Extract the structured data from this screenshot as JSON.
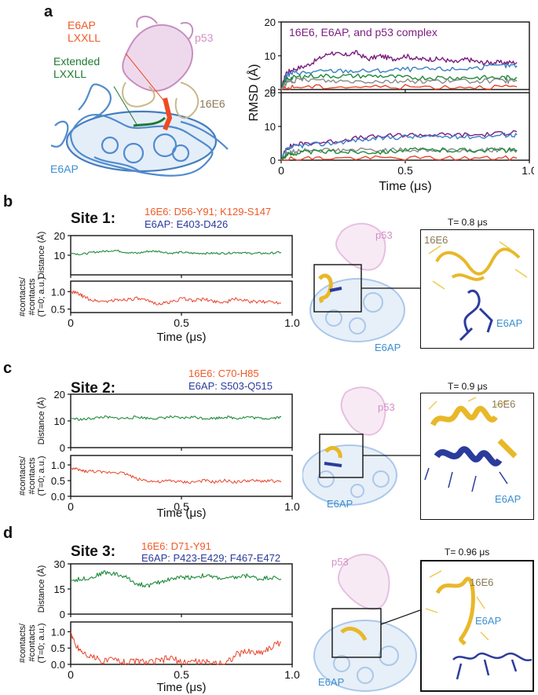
{
  "colors": {
    "purple": "#7b1d7f",
    "blue": "#3b7fc4",
    "green": "#1f8a3b",
    "grey": "#8a8a8a",
    "red": "#e8452c",
    "orange_red": "#f05a28",
    "navy": "#2b3b9c",
    "tan": "#8a7a55",
    "pink": "#d58ec7",
    "e6ap_blue": "#3c8fcf",
    "dark_green": "#1e7a32"
  },
  "panel_a": {
    "letter": "a",
    "labels": {
      "e6ap_lxxll_1": "E6AP",
      "e6ap_lxxll_2": "LXXLL",
      "extended_1": "Extended",
      "extended_2": "LXXLL",
      "p53": "p53",
      "e16": "16E6",
      "e6ap": "E6AP"
    }
  },
  "panel_b": {
    "letter": "b",
    "site_title": "Site 1:",
    "region_16e6": "16E6: D56-Y91; K129-S147",
    "region_e6ap": "E6AP: E403-D426",
    "zoom_time": "T= 0.8 μs",
    "struct_labels": {
      "p53": "p53",
      "e6ap": "E6AP",
      "zoom_16e6": "16E6",
      "zoom_e6ap": "E6AP"
    }
  },
  "panel_c": {
    "letter": "c",
    "site_title": "Site 2:",
    "region_16e6": "16E6: C70-H85",
    "region_e6ap": "E6AP: S503-Q515",
    "zoom_time": "T= 0.9 μs",
    "struct_labels": {
      "p53": "p53",
      "e6ap": "E6AP",
      "zoom_16e6": "16E6",
      "zoom_e6ap": "E6AP"
    }
  },
  "panel_d": {
    "letter": "d",
    "site_title": "Site 3:",
    "region_16e6": "16E6: D71-Y91",
    "region_e6ap": "E6AP: P423-E429; F467-E472",
    "zoom_time": "T= 0.96 μs",
    "struct_labels": {
      "p53": "p53",
      "e6ap": "E6AP",
      "zoom_16e6": "16E6",
      "zoom_e6ap": "E6AP"
    }
  },
  "chart_data": [
    {
      "id": "rmsd",
      "type": "line",
      "title": "16E6, E6AP, and p53 complex",
      "xlabel": "Time (μs)",
      "ylabel": "RMSD (Å)",
      "xlim": [
        0,
        1.0
      ],
      "xticks": [
        "0",
        "0.5",
        "1.0"
      ],
      "subplots": [
        {
          "ylim": [
            0,
            20
          ],
          "yticks": [
            "0",
            "10",
            "20"
          ],
          "series": [
            {
              "color": "#7b1d7f",
              "x": [
                0,
                0.02,
                0.05,
                0.1,
                0.15,
                0.2,
                0.25,
                0.3,
                0.35,
                0.4,
                0.45,
                0.5,
                0.55,
                0.6,
                0.65,
                0.7,
                0.75,
                0.8,
                0.85,
                0.9,
                0.95
              ],
              "y": [
                0,
                5,
                6,
                7,
                9,
                11,
                10,
                11,
                9,
                10,
                9,
                10,
                9,
                9,
                9,
                8,
                9,
                8,
                8,
                8,
                8
              ]
            },
            {
              "color": "#3b7fc4",
              "x": [
                0,
                0.02,
                0.05,
                0.1,
                0.2,
                0.3,
                0.4,
                0.5,
                0.6,
                0.7,
                0.8,
                0.9,
                0.95
              ],
              "y": [
                0,
                4,
                5,
                5,
                5.5,
                5.5,
                5.5,
                6,
                6,
                6,
                6.5,
                7,
                7
              ]
            },
            {
              "color": "#1f8a3b",
              "x": [
                0,
                0.02,
                0.05,
                0.1,
                0.2,
                0.3,
                0.4,
                0.5,
                0.6,
                0.7,
                0.8,
                0.9,
                0.95
              ],
              "y": [
                0,
                3,
                3.5,
                4,
                4,
                4,
                4,
                3.5,
                3.5,
                3.5,
                3.5,
                3.5,
                3.5
              ]
            },
            {
              "color": "#8a8a8a",
              "x": [
                0,
                0.02,
                0.05,
                0.1,
                0.2,
                0.3,
                0.4,
                0.5,
                0.6,
                0.7,
                0.8,
                0.9,
                0.95
              ],
              "y": [
                0,
                2,
                2.5,
                3,
                2.5,
                2.5,
                2.5,
                2.5,
                2.5,
                2.5,
                2.5,
                2.5,
                2.5
              ]
            },
            {
              "color": "#e8452c",
              "x": [
                0,
                0.05,
                0.2,
                0.4,
                0.6,
                0.8,
                0.95
              ],
              "y": [
                0,
                0.8,
                0.8,
                0.8,
                0.8,
                0.8,
                0.8
              ]
            }
          ]
        },
        {
          "ylim": [
            0,
            20
          ],
          "yticks": [
            "0",
            "10",
            "20"
          ],
          "series": [
            {
              "color": "#7b1d7f",
              "x": [
                0,
                0.02,
                0.05,
                0.1,
                0.2,
                0.3,
                0.4,
                0.5,
                0.6,
                0.7,
                0.8,
                0.9,
                0.95
              ],
              "y": [
                0,
                3.5,
                4.5,
                5,
                5.5,
                6.5,
                7,
                7.5,
                7.5,
                7.5,
                7.5,
                8,
                8.5
              ]
            },
            {
              "color": "#3b7fc4",
              "x": [
                0,
                0.02,
                0.05,
                0.1,
                0.2,
                0.3,
                0.4,
                0.5,
                0.6,
                0.7,
                0.8,
                0.9,
                0.95
              ],
              "y": [
                0,
                3,
                4,
                4.5,
                5,
                6,
                6.5,
                7,
                7,
                7,
                7,
                7.5,
                7.5
              ]
            },
            {
              "color": "#8a8a8a",
              "x": [
                0,
                0.02,
                0.05,
                0.1,
                0.2,
                0.3,
                0.4,
                0.5,
                0.6,
                0.7,
                0.8,
                0.9,
                0.95
              ],
              "y": [
                0,
                2,
                2.5,
                3,
                3,
                3,
                3,
                3,
                3,
                3,
                3,
                3,
                3
              ]
            },
            {
              "color": "#1f8a3b",
              "x": [
                0,
                0.02,
                0.05,
                0.1,
                0.2,
                0.3,
                0.4,
                0.5,
                0.6,
                0.7,
                0.8,
                0.9,
                0.95
              ],
              "y": [
                0,
                1.5,
                2,
                2.5,
                2.5,
                2.5,
                2.5,
                3,
                3,
                3,
                3,
                3,
                3
              ]
            },
            {
              "color": "#e8452c",
              "x": [
                0,
                0.05,
                0.2,
                0.4,
                0.6,
                0.8,
                0.95
              ],
              "y": [
                0,
                0.6,
                0.6,
                0.6,
                0.6,
                0.6,
                0.6
              ]
            }
          ]
        }
      ]
    },
    {
      "id": "site1",
      "type": "line",
      "xlabel": "Time (μs)",
      "xlim": [
        0,
        1.0
      ],
      "xticks": [
        "0",
        "0.5",
        "1.0"
      ],
      "distance": {
        "ylabel": "Distance (Å)",
        "ylim": [
          0,
          20
        ],
        "yticks": [
          "10",
          "20"
        ],
        "color": "#1f8a3b",
        "x": [
          0,
          0.05,
          0.1,
          0.15,
          0.2,
          0.25,
          0.3,
          0.35,
          0.4,
          0.45,
          0.5,
          0.55,
          0.6,
          0.65,
          0.7,
          0.75,
          0.8,
          0.85,
          0.9,
          0.95
        ],
        "y": [
          11,
          10.5,
          11.5,
          12,
          12.5,
          11.5,
          11,
          12,
          12,
          11,
          11.5,
          11,
          11,
          11,
          11,
          11.5,
          11,
          11,
          11,
          11.5
        ]
      },
      "contacts": {
        "ylabel_1": "#contacts/",
        "ylabel_2": "#contacts",
        "ylabel_3": "(T=0; a.u.)",
        "ylim": [
          0.4,
          1.3
        ],
        "yticks": [
          "0.5",
          "1.0"
        ],
        "color": "#e8452c",
        "x": [
          0,
          0.03,
          0.06,
          0.1,
          0.15,
          0.2,
          0.25,
          0.3,
          0.35,
          0.4,
          0.45,
          0.5,
          0.55,
          0.6,
          0.65,
          0.7,
          0.75,
          0.8,
          0.85,
          0.9,
          0.95
        ],
        "y": [
          1.0,
          0.95,
          0.85,
          0.75,
          0.72,
          0.75,
          0.78,
          0.8,
          0.72,
          0.65,
          0.7,
          0.8,
          0.75,
          0.78,
          0.72,
          0.7,
          0.8,
          0.72,
          0.7,
          0.72,
          0.68
        ]
      }
    },
    {
      "id": "site2",
      "type": "line",
      "xlabel": "Time (μs)",
      "xlim": [
        0,
        1.0
      ],
      "xticks": [
        "0",
        "0.5",
        "1.0"
      ],
      "distance": {
        "ylabel": "Distance (Å)",
        "ylim": [
          0,
          20
        ],
        "yticks": [
          "0",
          "10",
          "20"
        ],
        "color": "#1f8a3b",
        "x": [
          0,
          0.05,
          0.1,
          0.15,
          0.2,
          0.25,
          0.3,
          0.35,
          0.4,
          0.45,
          0.5,
          0.55,
          0.6,
          0.65,
          0.7,
          0.75,
          0.8,
          0.85,
          0.9,
          0.95
        ],
        "y": [
          11,
          10.5,
          11,
          11.5,
          11,
          11,
          11.5,
          11,
          11,
          11.5,
          11,
          11.5,
          11,
          11,
          11.5,
          11,
          11.5,
          11,
          11,
          11.5
        ]
      },
      "contacts": {
        "ylabel_1": "#contacts/",
        "ylabel_2": "#contacts",
        "ylabel_3": "(T=0; a.u.)",
        "ylim": [
          0,
          1.3
        ],
        "yticks": [
          "0.0",
          "0.5",
          "1.0"
        ],
        "color": "#e8452c",
        "x": [
          0,
          0.03,
          0.06,
          0.1,
          0.15,
          0.2,
          0.25,
          0.3,
          0.35,
          0.4,
          0.45,
          0.5,
          0.55,
          0.6,
          0.65,
          0.7,
          0.75,
          0.8,
          0.85,
          0.9,
          0.95
        ],
        "y": [
          0.9,
          0.85,
          0.8,
          0.8,
          0.75,
          0.78,
          0.72,
          0.55,
          0.5,
          0.45,
          0.5,
          0.45,
          0.45,
          0.5,
          0.45,
          0.5,
          0.45,
          0.5,
          0.48,
          0.5,
          0.45
        ]
      }
    },
    {
      "id": "site3",
      "type": "line",
      "xlabel": "Time (μs)",
      "xlim": [
        0,
        1.0
      ],
      "xticks": [
        "0",
        "0.5",
        "1.0"
      ],
      "distance": {
        "ylabel": "Distance (Å)",
        "ylim": [
          0,
          30
        ],
        "yticks": [
          "0",
          "15",
          "30"
        ],
        "color": "#1f8a3b",
        "x": [
          0,
          0.05,
          0.1,
          0.15,
          0.2,
          0.25,
          0.3,
          0.35,
          0.4,
          0.45,
          0.5,
          0.55,
          0.6,
          0.65,
          0.7,
          0.75,
          0.8,
          0.85,
          0.9,
          0.95
        ],
        "y": [
          20,
          21,
          22,
          25,
          24,
          22,
          18,
          17,
          19,
          21,
          22,
          22,
          23,
          22,
          21,
          22,
          23,
          21,
          22,
          21
        ]
      },
      "contacts": {
        "ylabel_1": "#contacts/",
        "ylabel_2": "#contacts",
        "ylabel_3": "(T=0; a.u.)",
        "ylim": [
          0,
          1.3
        ],
        "yticks": [
          "0.0",
          "0.5",
          "1.0"
        ],
        "color": "#e8452c",
        "x": [
          0,
          0.02,
          0.05,
          0.1,
          0.15,
          0.2,
          0.25,
          0.3,
          0.35,
          0.4,
          0.45,
          0.5,
          0.55,
          0.6,
          0.65,
          0.7,
          0.75,
          0.8,
          0.85,
          0.9,
          0.95
        ],
        "y": [
          1.0,
          0.6,
          0.4,
          0.2,
          0.1,
          0.15,
          0.05,
          0.1,
          0.05,
          0.1,
          0.2,
          0.05,
          0.1,
          0.05,
          0.05,
          0.05,
          0.3,
          0.4,
          0.35,
          0.5,
          0.7
        ]
      }
    }
  ]
}
